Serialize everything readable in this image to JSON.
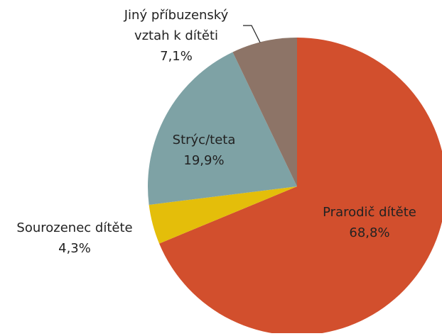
{
  "chart_data": {
    "type": "pie",
    "categories": [
      "Prarodič dítěte",
      "Sourozenec dítěte",
      "Strýc/teta",
      "Jiný příbuzenský vztah k dítěti"
    ],
    "values": [
      68.8,
      4.3,
      19.9,
      7.1
    ],
    "value_labels": [
      "68,8%",
      "4,3%",
      "19,9%",
      "7,1%"
    ],
    "colors": [
      "#d24f2d",
      "#e4be0a",
      "#7ea2a5",
      "#8d7467"
    ]
  }
}
